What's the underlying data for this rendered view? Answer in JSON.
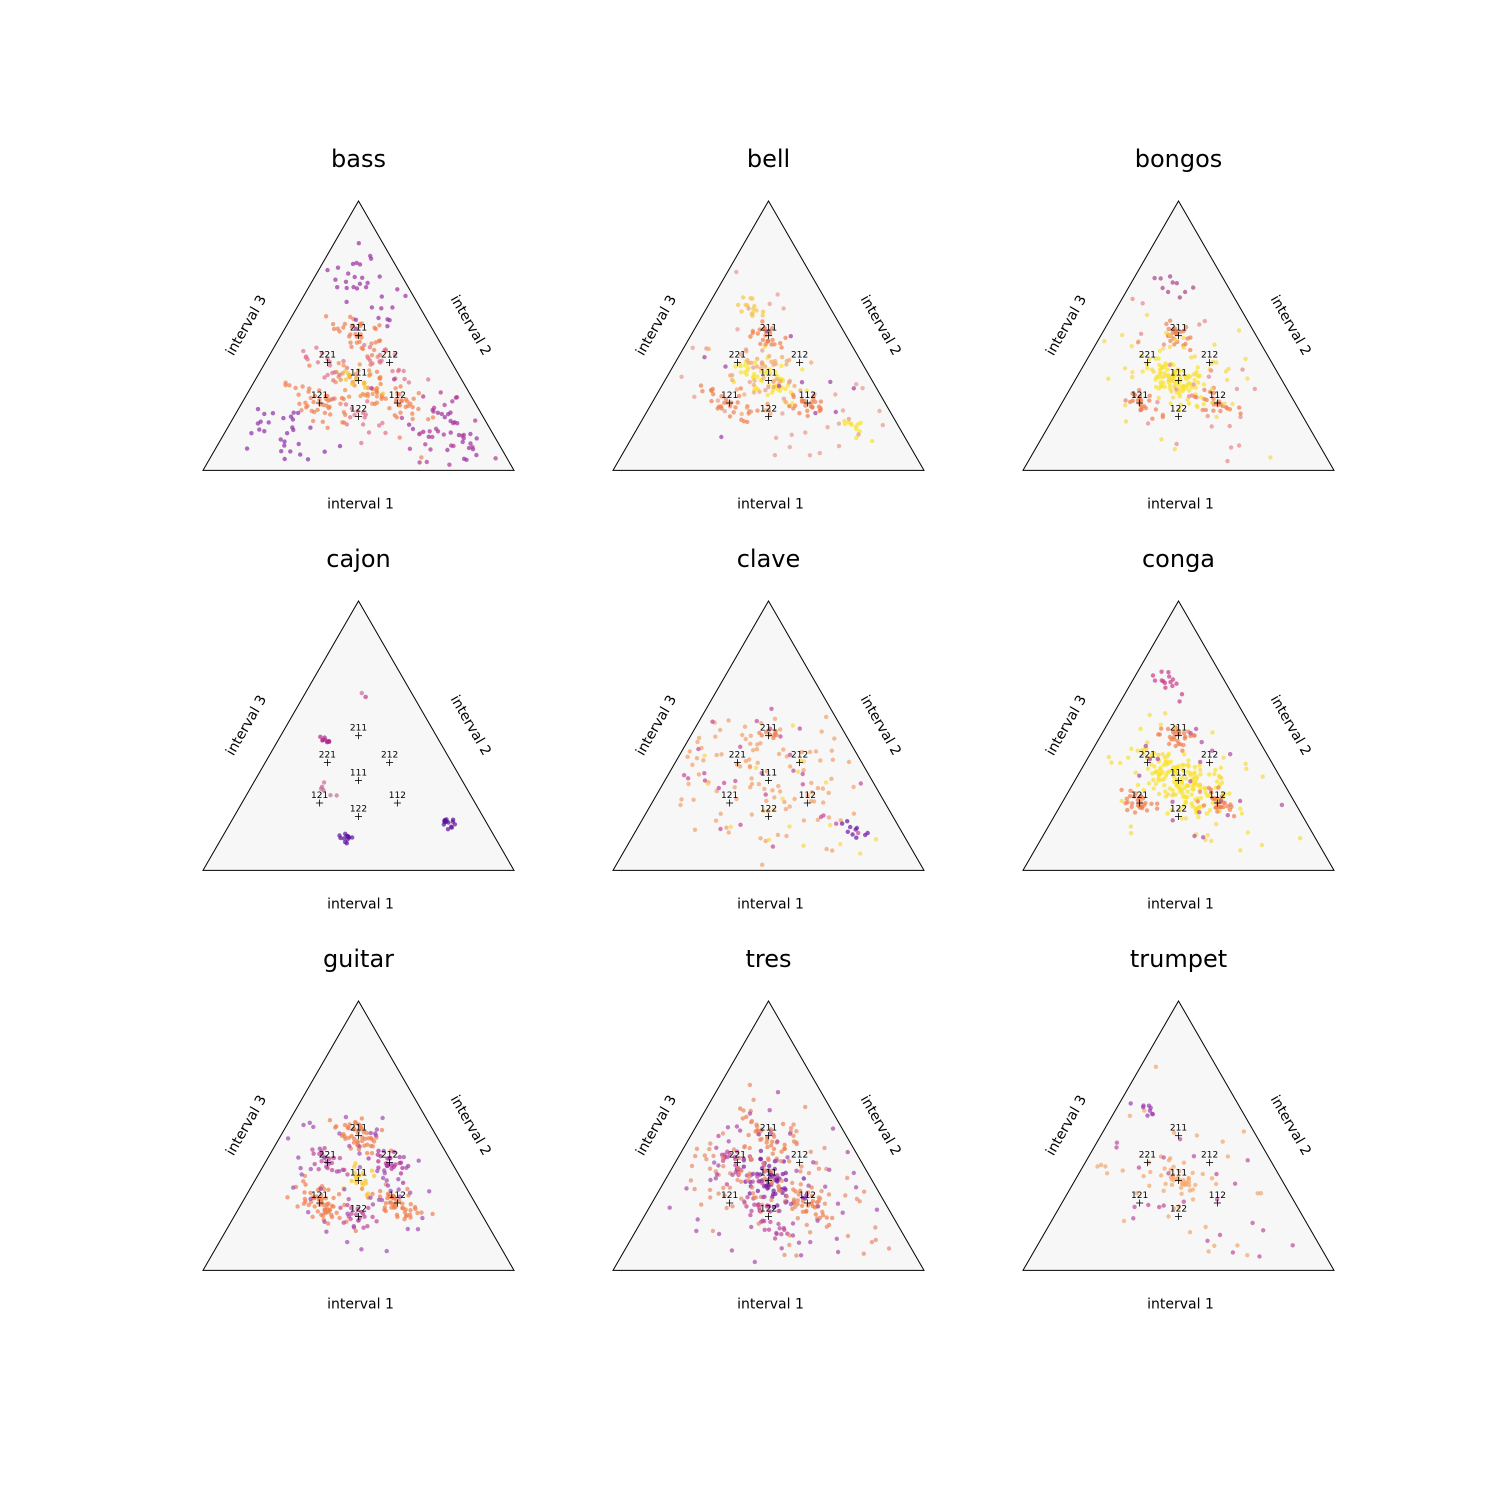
{
  "chart_data": {
    "type": "scatter",
    "projection": "ternary",
    "axis_labels": {
      "bottom": "interval 1",
      "right": "interval 2",
      "left": "interval 3"
    },
    "reference_rhythms": [
      {
        "label": "121",
        "ratios": [
          1,
          2,
          1
        ]
      },
      {
        "label": "122",
        "ratios": [
          1,
          2,
          2
        ]
      },
      {
        "label": "221",
        "ratios": [
          2,
          2,
          1
        ]
      },
      {
        "label": "111",
        "ratios": [
          1,
          1,
          1
        ]
      },
      {
        "label": "112",
        "ratios": [
          1,
          1,
          2
        ]
      },
      {
        "label": "211",
        "ratios": [
          2,
          1,
          1
        ]
      },
      {
        "label": "212",
        "ratios": [
          2,
          1,
          2
        ]
      }
    ],
    "colormap": "plasma",
    "background_color": "#f7f7f7",
    "panels": [
      {
        "title": "bass",
        "clusters": [
          {
            "center": "121",
            "n": 45,
            "spread": 0.05,
            "color": "#f07f4f"
          },
          {
            "center": "111",
            "n": 35,
            "spread": 0.045,
            "color": "#f0904a"
          },
          {
            "center": "112",
            "n": 40,
            "spread": 0.05,
            "color": "#f07f4f"
          },
          {
            "center": "211",
            "n": 40,
            "spread": 0.05,
            "color": "#f07f4f"
          },
          {
            "center": "221",
            "n": 18,
            "spread": 0.04,
            "color": "#e0708a"
          },
          {
            "center": "122",
            "n": 18,
            "spread": 0.04,
            "color": "#e0708a"
          },
          {
            "center": "212",
            "n": 20,
            "spread": 0.04,
            "color": "#e0708a"
          },
          {
            "center": [
              0.12,
              0.12,
              0.76
            ],
            "n": 28,
            "spread": 0.055,
            "color": "#9c2ea0"
          },
          {
            "center": [
              0.7,
              0.15,
              0.15
            ],
            "n": 40,
            "spread": 0.08,
            "color": "#9c2ea0"
          },
          {
            "center": [
              0.15,
              0.7,
              0.15
            ],
            "n": 40,
            "spread": 0.08,
            "color": "#8a2ea8"
          },
          {
            "center": [
              0.15,
              0.15,
              0.7
            ],
            "n": 35,
            "spread": 0.08,
            "color": "#b03596"
          },
          {
            "center": "111",
            "n": 10,
            "spread": 0.03,
            "color": "#f5c42a"
          }
        ]
      },
      {
        "title": "bell",
        "clusters": [
          {
            "center": "111",
            "n": 55,
            "spread": 0.045,
            "color": "#f9e22a"
          },
          {
            "center": "121",
            "n": 30,
            "spread": 0.03,
            "color": "#f07f4f"
          },
          {
            "center": "112",
            "n": 25,
            "spread": 0.03,
            "color": "#f07f4f"
          },
          {
            "center": "211",
            "n": 25,
            "spread": 0.03,
            "color": "#f07f4f"
          },
          {
            "center": [
              0.4,
              0.3,
              0.3
            ],
            "n": 25,
            "spread": 0.05,
            "color": "#f3a66a"
          },
          {
            "center": [
              0.3,
              0.4,
              0.3
            ],
            "n": 20,
            "spread": 0.05,
            "color": "#f3a66a"
          },
          {
            "center": [
              0.6,
              0.25,
              0.15
            ],
            "n": 15,
            "spread": 0.02,
            "color": "#f6c64a"
          },
          {
            "center": [
              0.15,
              0.15,
              0.7
            ],
            "n": 12,
            "spread": 0.02,
            "color": "#f9e22a"
          },
          {
            "center": [
              0.34,
              0.33,
              0.33
            ],
            "n": 60,
            "spread": 0.18,
            "color": "#e59a8a"
          },
          {
            "center": [
              0.34,
              0.33,
              0.33
            ],
            "n": 15,
            "spread": 0.18,
            "color": "#a03aa0"
          }
        ]
      },
      {
        "title": "bongos",
        "clusters": [
          {
            "center": "111",
            "n": 90,
            "spread": 0.045,
            "color": "#f9e22a"
          },
          {
            "center": "121",
            "n": 25,
            "spread": 0.025,
            "color": "#f07f4f"
          },
          {
            "center": "112",
            "n": 25,
            "spread": 0.025,
            "color": "#f07f4f"
          },
          {
            "center": "211",
            "n": 25,
            "spread": 0.025,
            "color": "#f07f4f"
          },
          {
            "center": [
              0.34,
              0.33,
              0.33
            ],
            "n": 60,
            "spread": 0.14,
            "color": "#f8d84a"
          },
          {
            "center": [
              0.34,
              0.33,
              0.33
            ],
            "n": 30,
            "spread": 0.16,
            "color": "#e9868a"
          },
          {
            "center": [
              0.7,
              0.18,
              0.12
            ],
            "n": 10,
            "spread": 0.03,
            "color": "#a8418a"
          }
        ]
      },
      {
        "title": "cajon",
        "clusters": [
          {
            "center": [
              0.18,
              0.12,
              0.7
            ],
            "n": 14,
            "spread": 0.012,
            "color": "#5b11a0"
          },
          {
            "center": [
              0.12,
              0.48,
              0.4
            ],
            "n": 12,
            "spread": 0.012,
            "color": "#5b11a0"
          },
          {
            "center": [
              0.48,
              0.37,
              0.15
            ],
            "n": 10,
            "spread": 0.012,
            "color": "#b02a8c"
          },
          {
            "center": [
              0.3,
              0.45,
              0.25
            ],
            "n": 6,
            "spread": 0.012,
            "color": "#c86a9a"
          },
          {
            "center": [
              0.66,
              0.16,
              0.18
            ],
            "n": 3,
            "spread": 0.012,
            "color": "#c86a9a"
          }
        ]
      },
      {
        "title": "clave",
        "clusters": [
          {
            "center": [
              0.34,
              0.33,
              0.33
            ],
            "n": 110,
            "spread": 0.16,
            "color": "#f2a06a"
          },
          {
            "center": [
              0.34,
              0.33,
              0.33
            ],
            "n": 30,
            "spread": 0.16,
            "color": "#c8459a"
          },
          {
            "center": [
              0.34,
              0.33,
              0.33
            ],
            "n": 25,
            "spread": 0.16,
            "color": "#f8d84a"
          },
          {
            "center": [
              0.15,
              0.15,
              0.7
            ],
            "n": 10,
            "spread": 0.02,
            "color": "#6a16a0"
          },
          {
            "center": "211",
            "n": 10,
            "spread": 0.02,
            "color": "#f07f4f"
          }
        ]
      },
      {
        "title": "conga",
        "clusters": [
          {
            "center": "111",
            "n": 160,
            "spread": 0.06,
            "color": "#f9e22a"
          },
          {
            "center": "121",
            "n": 30,
            "spread": 0.025,
            "color": "#f07f4f"
          },
          {
            "center": "112",
            "n": 30,
            "spread": 0.025,
            "color": "#f07f4f"
          },
          {
            "center": "211",
            "n": 30,
            "spread": 0.025,
            "color": "#f07f4f"
          },
          {
            "center": [
              0.34,
              0.33,
              0.33
            ],
            "n": 50,
            "spread": 0.16,
            "color": "#f8d84a"
          },
          {
            "center": [
              0.34,
              0.33,
              0.33
            ],
            "n": 25,
            "spread": 0.16,
            "color": "#b0479a"
          },
          {
            "center": [
              0.7,
              0.18,
              0.12
            ],
            "n": 15,
            "spread": 0.03,
            "color": "#c83a8a"
          }
        ]
      },
      {
        "title": "guitar",
        "clusters": [
          {
            "center": "121",
            "n": 60,
            "spread": 0.035,
            "color": "#f07f4f"
          },
          {
            "center": "112",
            "n": 50,
            "spread": 0.035,
            "color": "#f07f4f"
          },
          {
            "center": "211",
            "n": 50,
            "spread": 0.035,
            "color": "#f07f4f"
          },
          {
            "center": "122",
            "n": 22,
            "spread": 0.025,
            "color": "#c0459a"
          },
          {
            "center": "221",
            "n": 22,
            "spread": 0.025,
            "color": "#c0459a"
          },
          {
            "center": "212",
            "n": 25,
            "spread": 0.025,
            "color": "#b0309a"
          },
          {
            "center": "111",
            "n": 20,
            "spread": 0.025,
            "color": "#f9c82a"
          },
          {
            "center": [
              0.34,
              0.33,
              0.33
            ],
            "n": 60,
            "spread": 0.13,
            "color": "#a04ab0"
          }
        ]
      },
      {
        "title": "tres",
        "clusters": [
          {
            "center": "111",
            "n": 60,
            "spread": 0.05,
            "color": "#7a1aa0"
          },
          {
            "center": "122",
            "n": 30,
            "spread": 0.04,
            "color": "#c0459a"
          },
          {
            "center": "221",
            "n": 30,
            "spread": 0.04,
            "color": "#c0459a"
          },
          {
            "center": "211",
            "n": 30,
            "spread": 0.035,
            "color": "#f07f4f"
          },
          {
            "center": "112",
            "n": 30,
            "spread": 0.035,
            "color": "#f07f4f"
          },
          {
            "center": [
              0.34,
              0.33,
              0.33
            ],
            "n": 140,
            "spread": 0.15,
            "color": "#e88a6a"
          },
          {
            "center": [
              0.34,
              0.33,
              0.33
            ],
            "n": 70,
            "spread": 0.17,
            "color": "#a84aa8"
          }
        ]
      },
      {
        "title": "trumpet",
        "clusters": [
          {
            "center": "111",
            "n": 30,
            "spread": 0.03,
            "color": "#f3a66a"
          },
          {
            "center": [
              0.34,
              0.33,
              0.33
            ],
            "n": 45,
            "spread": 0.16,
            "color": "#f2a66a"
          },
          {
            "center": [
              0.34,
              0.33,
              0.33
            ],
            "n": 25,
            "spread": 0.16,
            "color": "#c04a9a"
          },
          {
            "center": [
              0.6,
              0.3,
              0.1
            ],
            "n": 8,
            "spread": 0.015,
            "color": "#9a39b0"
          }
        ]
      }
    ]
  }
}
